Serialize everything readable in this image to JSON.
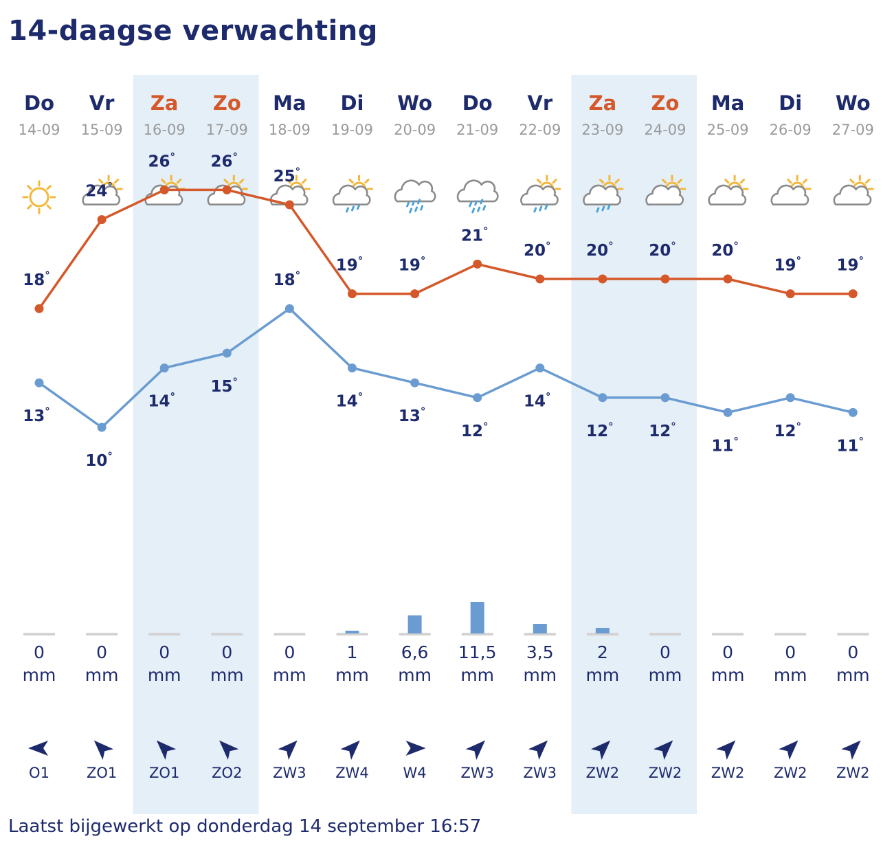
{
  "title": "14-daagse verwachting",
  "footer": "Laatst bijgewerkt op donderdag 14 september 16:57",
  "colors": {
    "max_line": "#d4582a",
    "min_line": "#6a9bd1",
    "weekend_band": "#e5eff8",
    "weekend_day": "#d4582a",
    "weekday": "#1d2a6b",
    "rain_bar": "#6a9bd1",
    "rain_base": "#d3d3d3"
  },
  "chart_data": {
    "type": "line",
    "x": [
      "14-09",
      "15-09",
      "16-09",
      "17-09",
      "18-09",
      "19-09",
      "20-09",
      "21-09",
      "22-09",
      "23-09",
      "24-09",
      "25-09",
      "26-09",
      "27-09"
    ],
    "weekday_labels": [
      "Do",
      "Vr",
      "Za",
      "Zo",
      "Ma",
      "Di",
      "Wo",
      "Do",
      "Vr",
      "Za",
      "Zo",
      "Ma",
      "Di",
      "Wo"
    ],
    "weekend": [
      false,
      false,
      true,
      true,
      false,
      false,
      false,
      false,
      false,
      true,
      true,
      false,
      false,
      false
    ],
    "icons": [
      "sun-icon",
      "sun-cloud-icon",
      "sun-cloud-icon",
      "sun-cloud-icon",
      "sun-cloud-icon",
      "sun-cloud-drizzle-icon",
      "rain-icon",
      "rain-icon",
      "sun-cloud-drizzle-icon",
      "sun-cloud-drizzle-icon",
      "sun-cloud-icon",
      "sun-cloud-icon",
      "sun-cloud-icon",
      "sun-cloud-icon"
    ],
    "series": [
      {
        "values": [
          18,
          24,
          26,
          26,
          25,
          19,
          19,
          21,
          20,
          20,
          20,
          20,
          19,
          19
        ],
        "labels": [
          "18°",
          "24°",
          "26°",
          "26°",
          "25°",
          "19°",
          "19°",
          "21°",
          "20°",
          "20°",
          "20°",
          "20°",
          "19°",
          "19°"
        ]
      },
      {
        "values": [
          13,
          10,
          14,
          15,
          18,
          14,
          13,
          12,
          14,
          12,
          12,
          11,
          12,
          11
        ],
        "labels": [
          "13°",
          "10°",
          "14°",
          "15°",
          "18°",
          "14°",
          "13°",
          "12°",
          "14°",
          "12°",
          "12°",
          "11°",
          "12°",
          "11°"
        ]
      }
    ],
    "precipitation": {
      "values": [
        0,
        0,
        0,
        0,
        0,
        1,
        6.6,
        11.5,
        3.5,
        2,
        0,
        0,
        0,
        0
      ],
      "labels": [
        "0",
        "0",
        "0",
        "0",
        "0",
        "1",
        "6,6",
        "11,5",
        "3,5",
        "2",
        "0",
        "0",
        "0",
        "0"
      ],
      "unit": "mm"
    },
    "wind": {
      "labels": [
        "O1",
        "ZO1",
        "ZO1",
        "ZO2",
        "ZW3",
        "ZW4",
        "W4",
        "ZW3",
        "ZW3",
        "ZW2",
        "ZW2",
        "ZW2",
        "ZW2",
        "ZW2"
      ],
      "arrow_direction_deg": [
        270,
        315,
        315,
        315,
        45,
        45,
        90,
        45,
        45,
        45,
        45,
        45,
        45,
        45
      ]
    }
  }
}
